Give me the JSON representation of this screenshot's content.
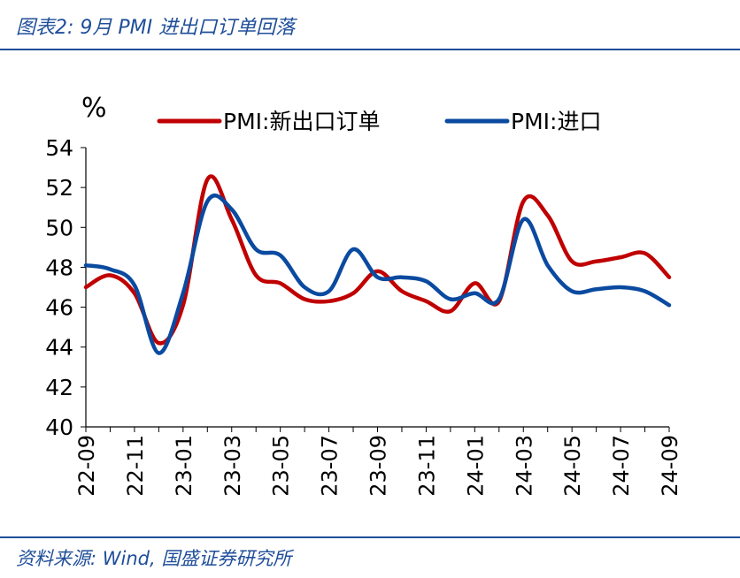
{
  "header": {
    "title": "图表2:  9月 PMI 进出口订单回落"
  },
  "footer": {
    "source": "资料来源:  Wind,  国盛证券研究所"
  },
  "colors": {
    "accent": "#1f4e9a",
    "series_red": "#c00000",
    "series_blue": "#0a4aa0"
  },
  "chart_data": {
    "type": "line",
    "title": "",
    "ylabel": "%",
    "xlabel": "",
    "ylim": [
      40,
      54
    ],
    "yticks": [
      40,
      42,
      44,
      46,
      48,
      50,
      52,
      54
    ],
    "grid": false,
    "legend_position": "top",
    "x": [
      "22-09",
      "22-10",
      "22-11",
      "22-12",
      "23-01",
      "23-02",
      "23-03",
      "23-04",
      "23-05",
      "23-06",
      "23-07",
      "23-08",
      "23-09",
      "23-10",
      "23-11",
      "23-12",
      "24-01",
      "24-02",
      "24-03",
      "24-04",
      "24-05",
      "24-06",
      "24-07",
      "24-08",
      "24-09"
    ],
    "xtick_labels": [
      "22-09",
      "22-11",
      "23-01",
      "23-03",
      "23-05",
      "23-07",
      "23-09",
      "23-11",
      "24-01",
      "24-03",
      "24-05",
      "24-07",
      "24-09"
    ],
    "series": [
      {
        "name": "PMI:新出口订单",
        "color": "#c00000",
        "values": [
          47.0,
          47.6,
          46.7,
          44.2,
          46.1,
          52.4,
          50.4,
          47.6,
          47.2,
          46.4,
          46.3,
          46.7,
          47.8,
          46.8,
          46.3,
          45.8,
          47.2,
          46.3,
          51.3,
          50.6,
          48.3,
          48.3,
          48.5,
          48.7,
          47.5
        ]
      },
      {
        "name": "PMI:进口",
        "color": "#0a4aa0",
        "values": [
          48.1,
          47.9,
          47.1,
          43.7,
          46.7,
          51.3,
          50.9,
          48.9,
          48.6,
          47.0,
          46.8,
          48.9,
          47.5,
          47.5,
          47.3,
          46.4,
          46.7,
          46.4,
          50.4,
          48.1,
          46.8,
          46.9,
          47.0,
          46.8,
          46.1
        ]
      }
    ]
  }
}
